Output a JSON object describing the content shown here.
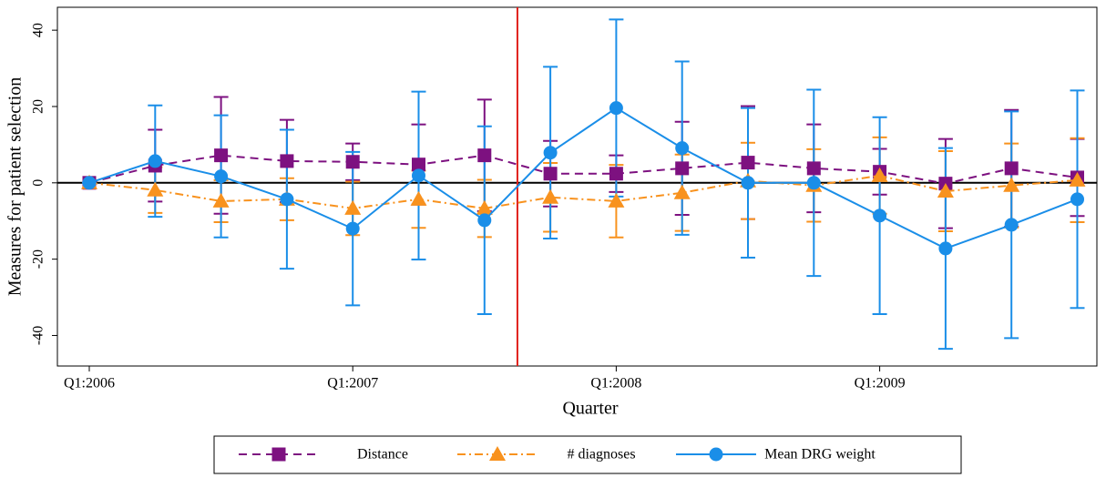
{
  "chart_data": {
    "type": "line",
    "x_label": "Quarter",
    "y_label": "Measures for patient selection",
    "categories": [
      "Q1:2006",
      null,
      null,
      null,
      "Q1:2007",
      null,
      null,
      null,
      "Q1:2008",
      null,
      null,
      null,
      "Q1:2009",
      null,
      null,
      null
    ],
    "ylim": [
      -48,
      46
    ],
    "yticks": [
      -40,
      -20,
      0,
      20,
      40
    ],
    "zero_line": 0,
    "reference_line": {
      "x": 6.5,
      "color": "#e0201b"
    },
    "legend": "bottom",
    "series": [
      {
        "name": "Distance",
        "color": "#7d1180",
        "marker": "square",
        "dash": "9,6",
        "values": [
          0,
          4.5,
          7.2,
          5.7,
          5.5,
          4.8,
          7.2,
          2.4,
          2.4,
          3.8,
          5.3,
          3.8,
          2.9,
          -0.2,
          3.8,
          1.4
        ],
        "errors": [
          0,
          9.4,
          15.3,
          10.8,
          4.8,
          10.5,
          14.6,
          8.6,
          4.8,
          12.2,
          14.8,
          11.5,
          6.0,
          11.7,
          15.3,
          10.1
        ]
      },
      {
        "name": "# diagnoses",
        "color": "#f8921e",
        "marker": "triangle",
        "dash": "9,4,2,4",
        "values": [
          0,
          -1.9,
          -4.8,
          -4.3,
          -6.7,
          -4.3,
          -6.7,
          -3.8,
          -4.8,
          -2.6,
          0.5,
          -0.7,
          1.9,
          -2.2,
          -0.7,
          0.7
        ],
        "errors": [
          0,
          6,
          5.5,
          5.5,
          7,
          7.5,
          7.5,
          9,
          9.5,
          10,
          10,
          9.5,
          10,
          10.5,
          11,
          11
        ]
      },
      {
        "name": "Mean DRG weight",
        "color": "#1a8ee8",
        "marker": "circle",
        "dash": "none",
        "values": [
          0,
          5.7,
          1.7,
          -4.3,
          -12,
          1.9,
          -9.8,
          7.9,
          19.6,
          9.1,
          0,
          0,
          -8.6,
          -17.2,
          -11,
          -4.3
        ],
        "errors": [
          0,
          14.6,
          16,
          18.2,
          20.1,
          22,
          24.6,
          22.5,
          23.2,
          22.7,
          19.6,
          24.4,
          25.8,
          26.3,
          29.7,
          28.5
        ]
      }
    ]
  }
}
